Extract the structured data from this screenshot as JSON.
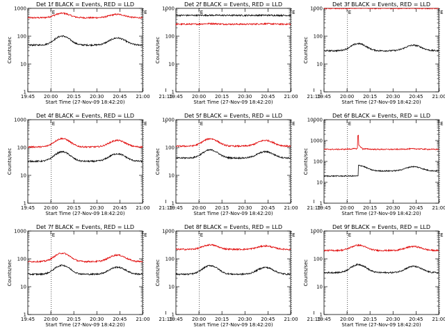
{
  "chart_data": {
    "type": "line",
    "y_scale": "log",
    "ylabel": "Counts/sec",
    "xlabel": "Start Time (27-Nov-09 18:42:20)",
    "x_tick_labels": [
      "19:45",
      "20:00",
      "20:15",
      "20:30",
      "20:45",
      "21:00",
      "21:15"
    ],
    "x_range_minutes": [
      19.7,
      94.5
    ],
    "x_tick_minutes": [
      20,
      35,
      50,
      65,
      80,
      95,
      110
    ],
    "marker_minutes": [
      35,
      95
    ],
    "marker_letters": [
      "E",
      "E"
    ],
    "series_colors": {
      "events": "#000000",
      "lld": "#e00000"
    },
    "panels": [
      {
        "title": "Det 1f BLACK = Events, RED = LLD",
        "ylim": [
          1,
          1000
        ],
        "y_ticks": [
          "1",
          "10",
          "100",
          "1000"
        ],
        "series": [
          {
            "key": "lld",
            "base": 460,
            "amp": 0.45,
            "phase": 0.1
          },
          {
            "key": "events",
            "base": 48,
            "amp": 1.1,
            "phase": 0.1
          }
        ]
      },
      {
        "title": "Det 2f BLACK = Events, RED = LLD",
        "ylim": [
          1,
          1000
        ],
        "y_ticks": [
          "1",
          "10",
          "100",
          "1000"
        ],
        "series": [
          {
            "key": "lld",
            "base": 270,
            "amp": 0.05,
            "phase": 0.0
          },
          {
            "key": "events",
            "base": 560,
            "amp": 0.01,
            "phase": 0.0
          }
        ]
      },
      {
        "title": "Det 3f BLACK = Events, RED = LLD",
        "ylim": [
          1,
          1000
        ],
        "y_ticks": [
          "1",
          "10",
          "100",
          "1000"
        ],
        "series": [
          {
            "key": "lld",
            "base": 1000,
            "amp": 0.03,
            "phase": 0.0
          },
          {
            "key": "events",
            "base": 30,
            "amp": 0.8,
            "phase": 0.0
          }
        ]
      },
      {
        "title": "Det 4f BLACK = Events, RED = LLD",
        "ylim": [
          1,
          1000
        ],
        "y_ticks": [
          "1",
          "10",
          "100",
          "1000"
        ],
        "series": [
          {
            "key": "lld",
            "base": 105,
            "amp": 1.0,
            "phase": 0.0
          },
          {
            "key": "events",
            "base": 32,
            "amp": 1.2,
            "phase": 0.0
          }
        ]
      },
      {
        "title": "Det 5f BLACK = Events, RED = LLD",
        "ylim": [
          1,
          1000
        ],
        "y_ticks": [
          "1",
          "10",
          "100",
          "1000"
        ],
        "series": [
          {
            "key": "lld",
            "base": 112,
            "amp": 0.85,
            "phase": 0.0
          },
          {
            "key": "events",
            "base": 42,
            "amp": 0.95,
            "phase": 0.0
          }
        ]
      },
      {
        "title": "Det 6f BLACK = Events, RED = LLD",
        "ylim": [
          1,
          10000
        ],
        "y_ticks": [
          "1",
          "10",
          "100",
          "1000",
          "10000"
        ],
        "series": [
          {
            "key": "lld",
            "base": 380,
            "amp": 0.08,
            "phase": 0.0,
            "spike": 1800
          },
          {
            "key": "events",
            "base": 35,
            "amp": 0.85,
            "phase": 0.0,
            "step": 20
          }
        ]
      },
      {
        "title": "Det 7f BLACK = Events, RED = LLD",
        "ylim": [
          1,
          1000
        ],
        "y_ticks": [
          "1",
          "10",
          "100",
          "1000"
        ],
        "series": [
          {
            "key": "lld",
            "base": 80,
            "amp": 1.0,
            "phase": 0.0
          },
          {
            "key": "events",
            "base": 28,
            "amp": 1.1,
            "phase": 0.0
          }
        ]
      },
      {
        "title": "Det 8f BLACK = Events, RED = LLD",
        "ylim": [
          1,
          1000
        ],
        "y_ticks": [
          "1",
          "10",
          "100",
          "1000"
        ],
        "series": [
          {
            "key": "lld",
            "base": 220,
            "amp": 0.45,
            "phase": 0.0
          },
          {
            "key": "events",
            "base": 28,
            "amp": 1.05,
            "phase": 0.0
          }
        ]
      },
      {
        "title": "Det 9f BLACK = Events, RED = LLD",
        "ylim": [
          1,
          1000
        ],
        "y_ticks": [
          "1",
          "10",
          "100",
          "1000"
        ],
        "series": [
          {
            "key": "lld",
            "base": 200,
            "amp": 0.55,
            "phase": 0.0
          },
          {
            "key": "events",
            "base": 32,
            "amp": 0.95,
            "phase": 0.0
          }
        ]
      }
    ]
  }
}
